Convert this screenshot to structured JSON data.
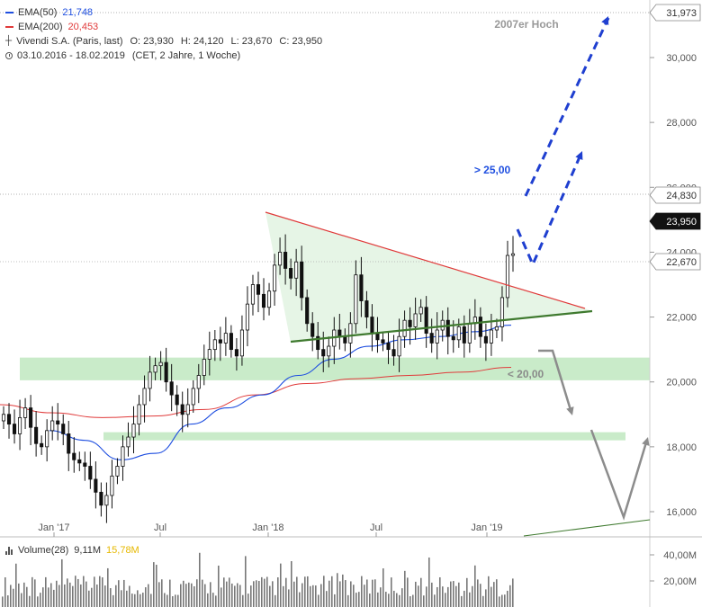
{
  "legend": {
    "ema50": {
      "label": "EMA(50)",
      "value": "21,748",
      "color": "#1f4fe0"
    },
    "ema200": {
      "label": "EMA(200)",
      "value": "20,453",
      "color": "#e03a3a"
    },
    "instrument": {
      "name": "Vivendi S.A. (Paris, last)",
      "ohlc": [
        "O: 23,930",
        "H: 24,120",
        "L: 23,670",
        "C: 23,950"
      ]
    },
    "period": {
      "range": "03.10.2016 - 18.02.2019",
      "detail": "(CET, 2 Jahre, 1 Woche)"
    }
  },
  "volume_legend": {
    "label": "Volume(28)",
    "value": "9,11M",
    "avg": "15,78M",
    "avg_color": "#e6b800"
  },
  "annotations": {
    "hoch_2007": "2007er Hoch",
    "above_25": "> 25,00",
    "below_20": "< 20,00"
  },
  "price_tags": {
    "hoch_2007": "31,973",
    "resistance": "24,830",
    "last": "23,950",
    "support": "22,670"
  },
  "chart_data": {
    "type": "candlestick",
    "currency_axis": {
      "ticks": [
        16000,
        18000,
        20000,
        22000,
        24000,
        26000,
        28000,
        30000
      ],
      "tick_labels": [
        "16,000",
        "18,000",
        "20,000",
        "22,000",
        "24,000",
        "26,000",
        "28,000",
        "30,000"
      ]
    },
    "ylim": [
      15500,
      32500
    ],
    "x_tick_labels": [
      "Jan '17",
      "Jul",
      "Jan '18",
      "Jul",
      "Jan '19"
    ],
    "x_range": [
      "2016-10-03",
      "2019-02-18"
    ],
    "weekly_close": [
      19.0,
      18.7,
      18.4,
      18.9,
      19.2,
      18.6,
      18.1,
      18.0,
      18.5,
      18.8,
      18.7,
      18.4,
      17.8,
      17.6,
      17.5,
      17.4,
      17.0,
      16.6,
      16.2,
      16.5,
      17.1,
      17.4,
      18.0,
      18.3,
      18.7,
      19.3,
      19.8,
      20.3,
      20.5,
      20.6,
      20.0,
      19.6,
      19.3,
      19.0,
      19.3,
      19.8,
      20.2,
      20.7,
      21.0,
      21.3,
      21.2,
      21.5,
      21.0,
      20.8,
      21.6,
      22.4,
      23.0,
      22.7,
      22.3,
      22.8,
      23.6,
      24.0,
      23.5,
      23.2,
      23.7,
      22.6,
      21.8,
      21.4,
      21.0,
      20.8,
      21.1,
      21.6,
      21.4,
      21.2,
      21.8,
      23.3,
      22.5,
      22.0,
      21.5,
      21.3,
      21.2,
      21.0,
      20.8,
      21.4,
      21.9,
      21.7,
      22.1,
      22.3,
      21.5,
      21.2,
      21.6,
      21.9,
      21.4,
      21.3,
      21.7,
      21.2,
      21.8,
      22.0,
      21.4,
      21.2,
      21.6,
      21.7,
      22.6,
      23.9,
      23.95
    ],
    "ema50": [
      18.5,
      18.2,
      17.6,
      17.8,
      18.7,
      19.2,
      19.6,
      20.2,
      20.7,
      21.1,
      21.3,
      21.4,
      21.55,
      21.75
    ],
    "ema200": [
      19.3,
      19.05,
      18.9,
      18.95,
      19.15,
      19.6,
      19.95,
      20.1,
      20.2,
      20.3,
      20.45
    ],
    "volume_avg": "15,78M",
    "volume_ticks": [
      "20,00M",
      "40,00M"
    ],
    "targets": {
      "breakout": 25.0,
      "breakdown": 20.0,
      "high_2007": 31.973
    }
  }
}
